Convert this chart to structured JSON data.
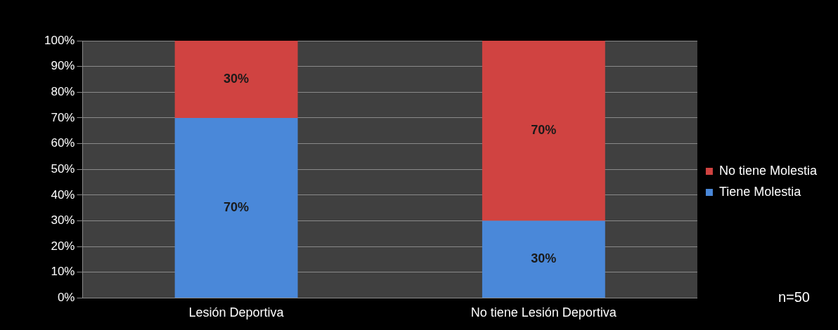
{
  "chart_data": {
    "type": "bar",
    "stacked": true,
    "categories": [
      "Lesión Deportiva",
      "No tiene Lesión Deportiva"
    ],
    "series": [
      {
        "name": "Tiene Molestia",
        "color": "#4a88d9",
        "values": [
          70,
          30
        ],
        "value_labels": [
          "70%",
          "30%"
        ]
      },
      {
        "name": "No tiene Molestia",
        "color": "#d04341",
        "values": [
          30,
          70
        ],
        "value_labels": [
          "30%",
          "70%"
        ]
      }
    ],
    "ylim": [
      0,
      100
    ],
    "yticks": [
      {
        "value": 0,
        "label": "0%"
      },
      {
        "value": 10,
        "label": "10%"
      },
      {
        "value": 20,
        "label": "20%"
      },
      {
        "value": 30,
        "label": "30%"
      },
      {
        "value": 40,
        "label": "40%"
      },
      {
        "value": 50,
        "label": "50%"
      },
      {
        "value": 60,
        "label": "60%"
      },
      {
        "value": 70,
        "label": "70%"
      },
      {
        "value": 80,
        "label": "80%"
      },
      {
        "value": 90,
        "label": "90%"
      },
      {
        "value": 100,
        "label": "100%"
      }
    ],
    "grid": "y",
    "legend": "right",
    "annotations": [
      "n=50"
    ]
  }
}
